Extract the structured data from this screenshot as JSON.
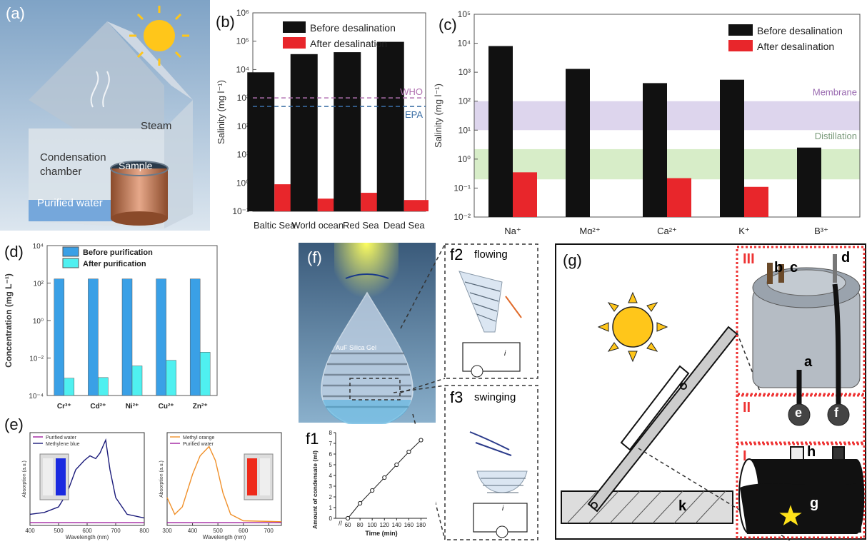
{
  "panels": {
    "a": {
      "label": "(a)",
      "steam": "Steam",
      "condensation": "Condensation",
      "chamber": "chamber",
      "sample": "Sample",
      "purified": "Purified water"
    },
    "b": {
      "label": "(b)"
    },
    "c": {
      "label": "(c)",
      "membrane": "Membrane",
      "distillation": "Distillation"
    },
    "d": {
      "label": "(d)"
    },
    "e": {
      "label": "(e)"
    },
    "f": {
      "label": "(f)",
      "gel_label": "AuF Silica Gel",
      "f2": "f2",
      "f2_text": "flowing",
      "f3": "f3",
      "f3_text": "swinging",
      "f1": "f1",
      "current": "i"
    },
    "g": {
      "label": "(g)",
      "III": "III",
      "II": "II",
      "I": "I",
      "a": "a",
      "b": "b",
      "c": "c",
      "d": "d",
      "e": "e",
      "f": "f",
      "g": "g",
      "h": "h",
      "k": "k"
    }
  },
  "chart_data": [
    {
      "id": "b",
      "type": "bar",
      "scale": "log",
      "ylim": [
        0.1,
        1000000
      ],
      "ylabel": "Salinity (mg l⁻¹)",
      "yticks": [
        "10⁻¹",
        "10⁰",
        "10¹",
        "10²",
        "10³",
        "10⁴",
        "10⁵",
        "10⁶"
      ],
      "categories": [
        "Baltic Sea",
        "World ocean",
        "Red Sea",
        "Dead Sea"
      ],
      "series": [
        {
          "name": "Before desalination",
          "color": "#111111",
          "values": [
            8000,
            35000,
            41000,
            95000
          ]
        },
        {
          "name": "After desalination",
          "color": "#e8262b",
          "values": [
            0.9,
            0.28,
            0.45,
            0.25
          ]
        }
      ],
      "reference_lines": [
        {
          "label": "WHO",
          "value": 1000,
          "color": "#b070b0"
        },
        {
          "label": "EPA",
          "value": 500,
          "color": "#3a6ea5"
        }
      ],
      "legend": "top-left"
    },
    {
      "id": "c",
      "type": "bar",
      "scale": "log",
      "ylim": [
        0.01,
        100000
      ],
      "ylabel": "Salinity (mg l⁻¹)",
      "yticks": [
        "10⁻²",
        "10⁻¹",
        "10⁰",
        "10¹",
        "10²",
        "10³",
        "10⁴",
        "10⁵"
      ],
      "categories": [
        "Na⁺",
        "Mg²⁺",
        "Ca²⁺",
        "K⁺",
        "B³⁺"
      ],
      "series": [
        {
          "name": "Before desalination",
          "color": "#111111",
          "values": [
            8000,
            1300,
            420,
            550,
            2.5
          ]
        },
        {
          "name": "After desalination",
          "color": "#e8262b",
          "values": [
            0.35,
            0.01,
            0.22,
            0.11,
            0.01
          ]
        }
      ],
      "bands": [
        {
          "label": "Membrane",
          "from": 10,
          "to": 100,
          "color": "#cfc3e6"
        },
        {
          "label": "Distillation",
          "from": 0.2,
          "to": 2.2,
          "color": "#c6e6b0"
        }
      ],
      "legend": "top-right"
    },
    {
      "id": "d",
      "type": "bar",
      "scale": "log",
      "ylim": [
        0.0001,
        100000
      ],
      "ylabel": "Concentration (mg L⁻¹)",
      "yticks": [
        "10⁻⁴",
        "10⁻²",
        "10⁰",
        "10²",
        "10⁴"
      ],
      "categories": [
        "Cr³⁺",
        "Cd²⁺",
        "Ni²⁺",
        "Cu²⁺",
        "Zn²⁺"
      ],
      "series": [
        {
          "name": "Before purification",
          "color": "#3aa0e6",
          "values": [
            1000,
            1000,
            1000,
            1000,
            1000
          ]
        },
        {
          "name": "After purification",
          "color": "#4ff0f0",
          "values": [
            0.0011,
            0.0012,
            0.006,
            0.013,
            0.04
          ]
        }
      ],
      "legend": "top-left"
    },
    {
      "id": "e1",
      "type": "line",
      "xlim": [
        400,
        800
      ],
      "xlabel": "Wavelength (nm)",
      "ylabel": "Absorption (a.u.)",
      "xticks": [
        "400",
        "500",
        "600",
        "700",
        "800"
      ],
      "series": [
        {
          "name": "Purified water",
          "color": "#a020a0",
          "x": [
            400,
            800
          ],
          "y": [
            0.03,
            0.03
          ]
        },
        {
          "name": "Methylene blue",
          "color": "#1a1a7a",
          "x": [
            400,
            450,
            500,
            530,
            560,
            590,
            610,
            630,
            645,
            665,
            680,
            700,
            740,
            800
          ],
          "y": [
            0.12,
            0.14,
            0.2,
            0.35,
            0.6,
            0.7,
            0.75,
            0.72,
            0.78,
            0.92,
            0.6,
            0.3,
            0.12,
            0.08
          ]
        }
      ]
    },
    {
      "id": "e2",
      "type": "line",
      "xlim": [
        300,
        750
      ],
      "xlabel": "Wavelength (nm)",
      "ylabel": "Absorption (a.u.)",
      "xticks": [
        "300",
        "400",
        "500",
        "600",
        "700"
      ],
      "series": [
        {
          "name": "Methyl orange",
          "color": "#f0902a",
          "x": [
            300,
            330,
            360,
            400,
            430,
            465,
            490,
            520,
            550,
            600,
            750
          ],
          "y": [
            0.3,
            0.12,
            0.2,
            0.55,
            0.75,
            0.85,
            0.7,
            0.35,
            0.12,
            0.05,
            0.04
          ]
        },
        {
          "name": "Purified water",
          "color": "#a020a0",
          "x": [
            300,
            750
          ],
          "y": [
            0.03,
            0.03
          ]
        }
      ]
    },
    {
      "id": "f1",
      "type": "scatter",
      "xlim": [
        40,
        190
      ],
      "ylim": [
        0,
        8
      ],
      "xlabel": "Time (min)",
      "ylabel": "Amount of condensate (ml)",
      "xticks": [
        "60",
        "80",
        "100",
        "120",
        "140",
        "160",
        "180"
      ],
      "yticks": [
        "0",
        "1",
        "2",
        "3",
        "4",
        "5",
        "6",
        "7",
        "8"
      ],
      "axis_break_label": "//",
      "series": [
        {
          "name": "",
          "color": "#333333",
          "x": [
            60,
            80,
            100,
            120,
            140,
            160,
            180
          ],
          "y": [
            0,
            1.4,
            2.6,
            3.8,
            5.0,
            6.2,
            7.3
          ]
        }
      ]
    }
  ]
}
